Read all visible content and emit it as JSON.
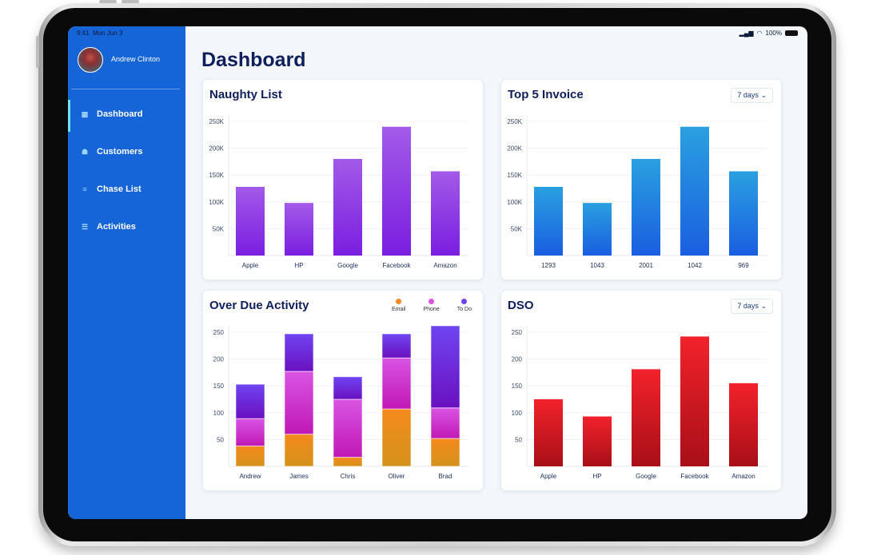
{
  "status": {
    "time": "9:41",
    "date": "Mon Jun 3",
    "battery": "100%"
  },
  "user": {
    "name": "Andrew Clinton"
  },
  "nav": [
    {
      "label": "Dashboard",
      "icon": "grid-icon"
    },
    {
      "label": "Customers",
      "icon": "people-icon"
    },
    {
      "label": "Chase List",
      "icon": "list-icon"
    },
    {
      "label": "Activities",
      "icon": "activity-list-icon"
    }
  ],
  "page_title": "Dashboard",
  "colors": {
    "sidebar": "#1565d8",
    "title": "#0f1f5c"
  },
  "chart_data": [
    {
      "id": "naughty",
      "type": "bar",
      "title": "Naughty List",
      "categories": [
        "Apple",
        "HP",
        "Google",
        "Facebook",
        "Amazon"
      ],
      "values": [
        128000,
        98000,
        180000,
        240000,
        157000
      ],
      "yticks": [
        "50K",
        "100K",
        "150K",
        "200K",
        "250K"
      ],
      "ylim": [
        0,
        250000
      ],
      "colors": [
        "#a35ae8",
        "#7a1ee0"
      ]
    },
    {
      "id": "invoice",
      "type": "bar",
      "title": "Top 5 Invoice",
      "dropdown": "7 days",
      "categories": [
        "1293",
        "1043",
        "2001",
        "1042",
        "969"
      ],
      "values": [
        128000,
        98000,
        180000,
        240000,
        157000
      ],
      "yticks": [
        "50K",
        "100K",
        "150K",
        "200K",
        "250K"
      ],
      "ylim": [
        0,
        250000
      ],
      "colors": [
        "#2aa0e0",
        "#1a5ee0"
      ]
    },
    {
      "id": "overdue",
      "type": "bar",
      "stacked": true,
      "title": "Over Due Activity",
      "categories": [
        "Andrew",
        "James",
        "Chris",
        "Oliver",
        "Brad"
      ],
      "series": [
        {
          "name": "Email",
          "values": [
            38,
            60,
            17,
            107,
            52
          ],
          "colors": [
            "#f48a1e",
            "#d4921a"
          ]
        },
        {
          "name": "Phone",
          "values": [
            51,
            117,
            108,
            95,
            57
          ],
          "colors": [
            "#d955e2",
            "#c018b5"
          ]
        },
        {
          "name": "To Do",
          "values": [
            64,
            70,
            42,
            45,
            153
          ],
          "colors": [
            "#6f45f2",
            "#6a10bf"
          ]
        }
      ],
      "yticks": [
        "50",
        "100",
        "150",
        "200",
        "250"
      ],
      "ylim": [
        0,
        250
      ]
    },
    {
      "id": "dso",
      "type": "bar",
      "title": "DSO",
      "dropdown": "7 days",
      "categories": [
        "Apple",
        "HP",
        "Google",
        "Facebook",
        "Amazon"
      ],
      "values": [
        125,
        93,
        181,
        242,
        155
      ],
      "yticks": [
        "50",
        "100",
        "150",
        "200",
        "250"
      ],
      "ylim": [
        0,
        250
      ],
      "colors": [
        "#f2222b",
        "#a80f18"
      ]
    }
  ]
}
